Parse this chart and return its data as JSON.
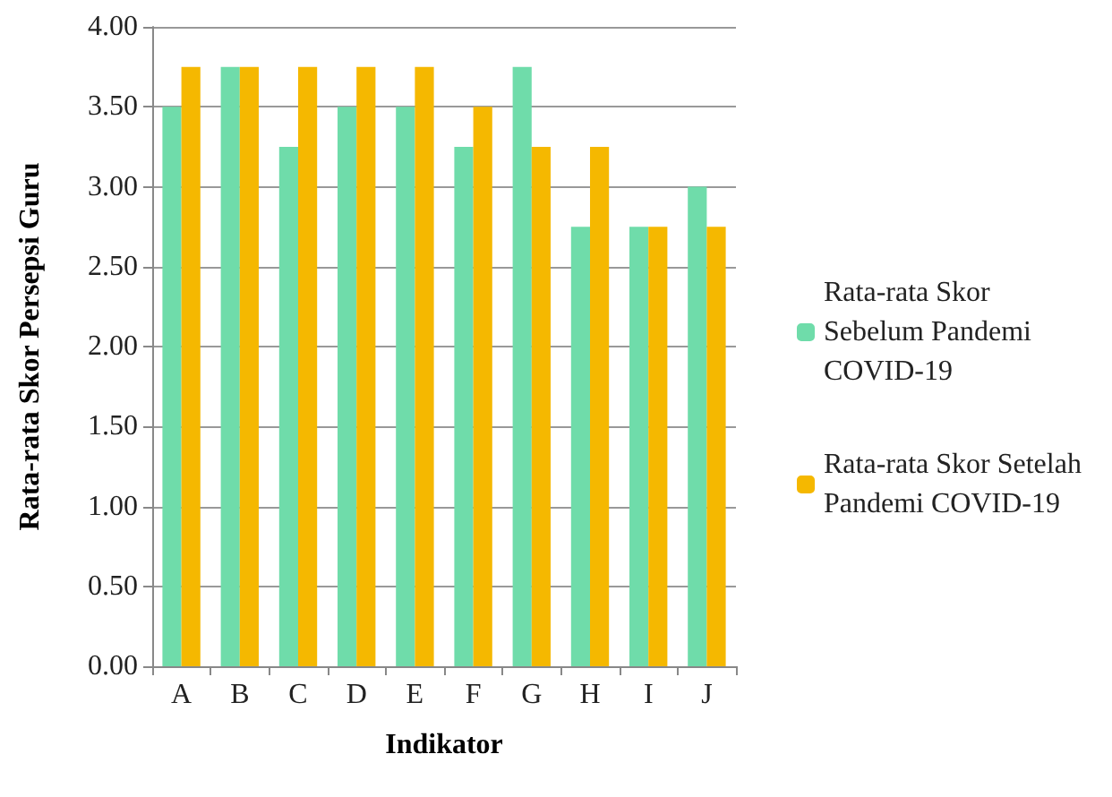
{
  "chart_data": {
    "type": "bar",
    "xlabel": "Indikator",
    "ylabel": "Rata-rata Skor Persepsi Guru",
    "categories": [
      "A",
      "B",
      "C",
      "D",
      "E",
      "F",
      "G",
      "H",
      "I",
      "J"
    ],
    "series": [
      {
        "name": "Rata-rata Skor Sebelum Pandemi COVID-19",
        "color": "#6fdcaa",
        "values": [
          3.5,
          3.75,
          3.25,
          3.5,
          3.5,
          3.25,
          3.75,
          2.75,
          2.75,
          3.0
        ]
      },
      {
        "name": "Rata-rata Skor Setelah Pandemi COVID-19",
        "color": "#f5b800",
        "values": [
          3.75,
          3.75,
          3.75,
          3.75,
          3.75,
          3.5,
          3.25,
          3.25,
          2.75,
          2.75
        ]
      }
    ],
    "ylim": [
      0,
      4
    ],
    "yticks": [
      {
        "value": 0,
        "label": "0.00"
      },
      {
        "value": 0.5,
        "label": "0.50"
      },
      {
        "value": 1,
        "label": "1.00"
      },
      {
        "value": 1.5,
        "label": "1.50"
      },
      {
        "value": 2,
        "label": "2.00"
      },
      {
        "value": 2.5,
        "label": "2.50"
      },
      {
        "value": 3,
        "label": "3.00"
      },
      {
        "value": 3.5,
        "label": "3.50"
      },
      {
        "value": 4,
        "label": "4.00"
      }
    ],
    "grid": "y",
    "legend": "right"
  }
}
